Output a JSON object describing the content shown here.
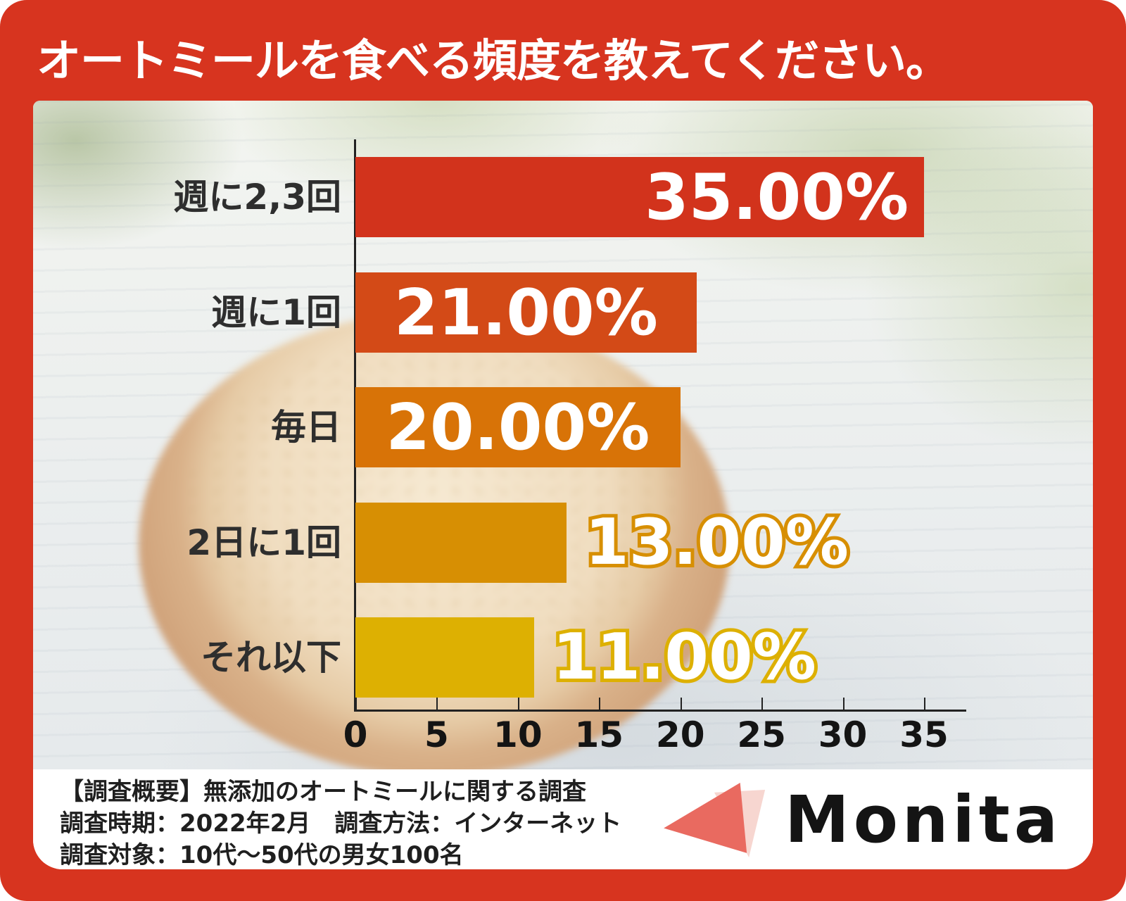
{
  "title": "オートミールを食べる頻度を教えてください。",
  "chart_data": {
    "type": "bar",
    "orientation": "horizontal",
    "title": "オートミールを食べる頻度を教えてください。",
    "categories": [
      "週に2,3回",
      "週に1回",
      "毎日",
      "2日に1回",
      "それ以下"
    ],
    "values": [
      35.0,
      21.0,
      20.0,
      13.0,
      11.0
    ],
    "value_labels": [
      "35.00%",
      "21.00%",
      "20.00%",
      "13.00%",
      "11.00%"
    ],
    "bar_colors": [
      "#d2331c",
      "#d34a17",
      "#d87307",
      "#d78f03",
      "#ddb002"
    ],
    "value_label_placement": [
      "inside-right",
      "inside-center",
      "inside-center",
      "outside",
      "outside"
    ],
    "xlim": [
      0,
      35
    ],
    "x_ticks": [
      "0",
      "5",
      "10",
      "15",
      "20",
      "25",
      "30",
      "35"
    ],
    "grid": false,
    "legend": false
  },
  "survey": {
    "line1": "【調査概要】無添加のオートミールに関する調査",
    "line2": "調査時期：2022年2月　調査方法：インターネット",
    "line3": "調査対象：10代～50代の男女100名"
  },
  "logo": {
    "text": "Monita",
    "icon": "paper-plane-icon"
  },
  "colors": {
    "frame": "#d7341f",
    "title_text": "#ffffff",
    "axis": "#222222",
    "category_text": "#2e2e2e",
    "logo_main_triangle": "#e96a60",
    "logo_light_triangle": "#f7d6d0",
    "logo_text": "#141414"
  }
}
